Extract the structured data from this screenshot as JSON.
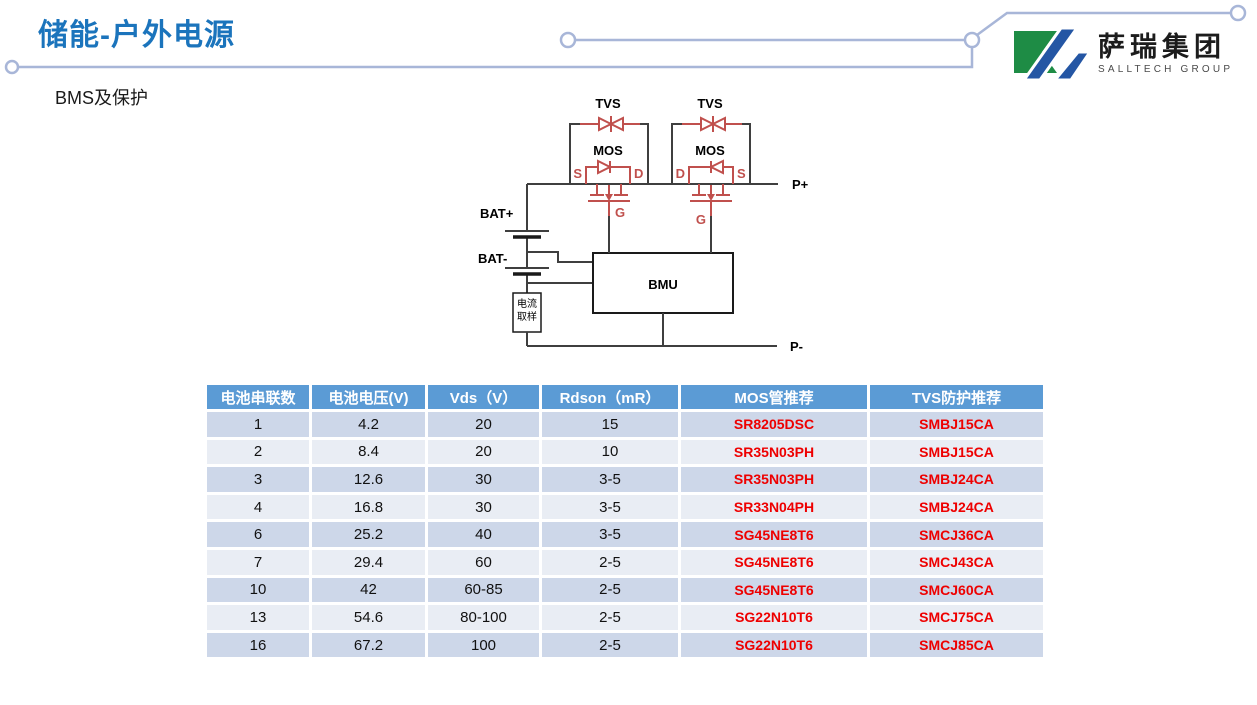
{
  "slide": {
    "title": "储能-户外电源",
    "subtitle": "BMS及保护"
  },
  "logo": {
    "cn": "萨瑞集团",
    "en": "SALLTECH GROUP"
  },
  "colors": {
    "title_blue": "#1B74BC",
    "table_header_blue": "#5B9BD5",
    "table_row_dark": "#CDD7E9",
    "table_row_light": "#E9EDF4",
    "table_red_text": "#EE0000",
    "circuit_red": "#C0504D",
    "circuit_line": "#3f3f3f",
    "trace_decoration": "#A8B6D8",
    "logo_green": "#1E8C45",
    "logo_blue": "#2456A4"
  },
  "diagram": {
    "labels": {
      "tvs": "TVS",
      "mos": "MOS",
      "s": "S",
      "d": "D",
      "g": "G",
      "bat_plus": "BAT+",
      "bat_minus": "BAT-",
      "p_plus": "P+",
      "p_minus": "P-",
      "bmu": "BMU",
      "sample_line1": "电流",
      "sample_line2": "取样"
    }
  },
  "table": {
    "headers": [
      "电池串联数",
      "电池电压(V)",
      "Vds（V）",
      "Rdson（mR）",
      "MOS管推荐",
      "TVS防护推荐"
    ],
    "rows": [
      [
        "1",
        "4.2",
        "20",
        "15",
        "SR8205DSC",
        "SMBJ15CA"
      ],
      [
        "2",
        "8.4",
        "20",
        "10",
        "SR35N03PH",
        "SMBJ15CA"
      ],
      [
        "3",
        "12.6",
        "30",
        "3-5",
        "SR35N03PH",
        "SMBJ24CA"
      ],
      [
        "4",
        "16.8",
        "30",
        "3-5",
        "SR33N04PH",
        "SMBJ24CA"
      ],
      [
        "6",
        "25.2",
        "40",
        "3-5",
        "SG45NE8T6",
        "SMCJ36CA"
      ],
      [
        "7",
        "29.4",
        "60",
        "2-5",
        "SG45NE8T6",
        "SMCJ43CA"
      ],
      [
        "10",
        "42",
        "60-85",
        "2-5",
        "SG45NE8T6",
        "SMCJ60CA"
      ],
      [
        "13",
        "54.6",
        "80-100",
        "2-5",
        "SG22N10T6",
        "SMCJ75CA"
      ],
      [
        "16",
        "67.2",
        "100",
        "2-5",
        "SG22N10T6",
        "SMCJ85CA"
      ]
    ]
  }
}
